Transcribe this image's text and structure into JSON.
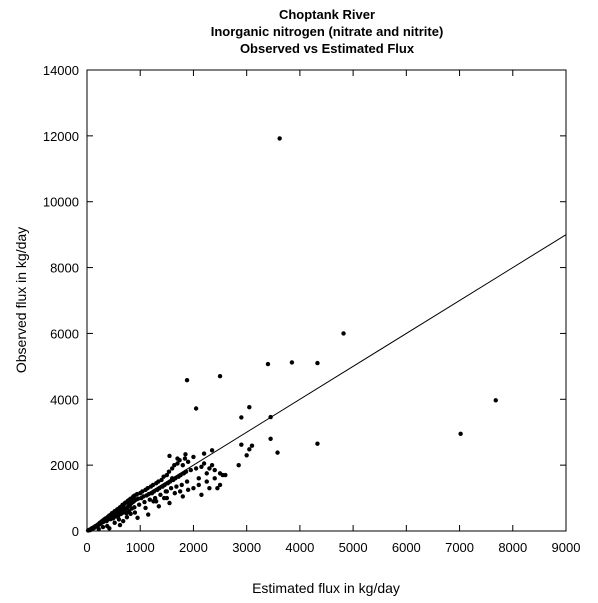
{
  "chart_data": {
    "type": "scatter",
    "title": [
      "Choptank River",
      "Inorganic nitrogen (nitrate and nitrite)",
      "Observed vs Estimated Flux"
    ],
    "xlabel": "Estimated flux in kg/day",
    "ylabel": "Observed flux in kg/day",
    "xlim": [
      0,
      9000
    ],
    "ylim": [
      0,
      14000
    ],
    "xticks": [
      "0",
      "1000",
      "2000",
      "3000",
      "4000",
      "5000",
      "6000",
      "7000",
      "8000",
      "9000"
    ],
    "yticks": [
      "0",
      "2000",
      "4000",
      "6000",
      "8000",
      "10000",
      "12000",
      "14000"
    ],
    "grid": false,
    "reference_line": {
      "x": [
        0,
        9000
      ],
      "y": [
        0,
        9000
      ]
    },
    "points": [
      [
        20,
        15
      ],
      [
        35,
        25
      ],
      [
        50,
        40
      ],
      [
        60,
        30
      ],
      [
        70,
        55
      ],
      [
        80,
        60
      ],
      [
        90,
        80
      ],
      [
        100,
        70
      ],
      [
        110,
        95
      ],
      [
        120,
        105
      ],
      [
        130,
        90
      ],
      [
        140,
        120
      ],
      [
        150,
        140
      ],
      [
        160,
        130
      ],
      [
        170,
        155
      ],
      [
        180,
        165
      ],
      [
        190,
        150
      ],
      [
        200,
        190
      ],
      [
        210,
        175
      ],
      [
        220,
        210
      ],
      [
        230,
        200
      ],
      [
        240,
        250
      ],
      [
        250,
        220
      ],
      [
        260,
        240
      ],
      [
        270,
        280
      ],
      [
        280,
        260
      ],
      [
        290,
        310
      ],
      [
        300,
        270
      ],
      [
        310,
        330
      ],
      [
        320,
        290
      ],
      [
        330,
        360
      ],
      [
        340,
        320
      ],
      [
        350,
        380
      ],
      [
        360,
        340
      ],
      [
        370,
        300
      ],
      [
        380,
        410
      ],
      [
        390,
        360
      ],
      [
        400,
        440
      ],
      [
        410,
        380
      ],
      [
        420,
        470
      ],
      [
        430,
        400
      ],
      [
        440,
        360
      ],
      [
        450,
        500
      ],
      [
        460,
        420
      ],
      [
        470,
        540
      ],
      [
        480,
        450
      ],
      [
        490,
        380
      ],
      [
        500,
        560
      ],
      [
        510,
        480
      ],
      [
        520,
        600
      ],
      [
        530,
        500
      ],
      [
        540,
        440
      ],
      [
        550,
        620
      ],
      [
        560,
        520
      ],
      [
        570,
        660
      ],
      [
        580,
        540
      ],
      [
        590,
        470
      ],
      [
        600,
        680
      ],
      [
        610,
        560
      ],
      [
        620,
        720
      ],
      [
        630,
        600
      ],
      [
        640,
        520
      ],
      [
        650,
        750
      ],
      [
        660,
        640
      ],
      [
        670,
        800
      ],
      [
        680,
        560
      ],
      [
        690,
        700
      ],
      [
        700,
        820
      ],
      [
        710,
        640
      ],
      [
        720,
        860
      ],
      [
        730,
        680
      ],
      [
        740,
        540
      ],
      [
        750,
        880
      ],
      [
        760,
        720
      ],
      [
        770,
        920
      ],
      [
        780,
        760
      ],
      [
        790,
        600
      ],
      [
        800,
        950
      ],
      [
        810,
        800
      ],
      [
        820,
        980
      ],
      [
        830,
        840
      ],
      [
        840,
        680
      ],
      [
        850,
        1000
      ],
      [
        860,
        880
      ],
      [
        870,
        1050
      ],
      [
        880,
        900
      ],
      [
        890,
        720
      ],
      [
        900,
        1080
      ],
      [
        920,
        950
      ],
      [
        940,
        1120
      ],
      [
        960,
        980
      ],
      [
        980,
        800
      ],
      [
        1000,
        1150
      ],
      [
        1020,
        1000
      ],
      [
        1040,
        1200
      ],
      [
        1060,
        1050
      ],
      [
        1080,
        880
      ],
      [
        1100,
        1250
      ],
      [
        1120,
        1080
      ],
      [
        1140,
        1300
      ],
      [
        1160,
        1120
      ],
      [
        1180,
        950
      ],
      [
        1200,
        1350
      ],
      [
        1220,
        1150
      ],
      [
        1240,
        1400
      ],
      [
        1260,
        1200
      ],
      [
        1280,
        1000
      ],
      [
        1300,
        1450
      ],
      [
        1320,
        1250
      ],
      [
        1340,
        1500
      ],
      [
        1360,
        1300
      ],
      [
        1380,
        1100
      ],
      [
        1400,
        1550
      ],
      [
        1420,
        1350
      ],
      [
        1440,
        1650
      ],
      [
        1460,
        1400
      ],
      [
        1480,
        1200
      ],
      [
        1500,
        1700
      ],
      [
        1520,
        1450
      ],
      [
        1540,
        1800
      ],
      [
        1560,
        1500
      ],
      [
        1580,
        1300
      ],
      [
        1600,
        1900
      ],
      [
        1620,
        1550
      ],
      [
        1640,
        2000
      ],
      [
        1660,
        1600
      ],
      [
        1680,
        1350
      ],
      [
        1700,
        2050
      ],
      [
        1720,
        1650
      ],
      [
        1740,
        2150
      ],
      [
        1760,
        1700
      ],
      [
        1780,
        1400
      ],
      [
        1800,
        2000
      ],
      [
        1820,
        1750
      ],
      [
        1840,
        2200
      ],
      [
        1860,
        1800
      ],
      [
        1880,
        1500
      ],
      [
        1900,
        2100
      ],
      [
        1950,
        1850
      ],
      [
        2000,
        2250
      ],
      [
        2050,
        1900
      ],
      [
        2100,
        1600
      ],
      [
        2150,
        1950
      ],
      [
        2200,
        2050
      ],
      [
        2250,
        1750
      ],
      [
        2300,
        1900
      ],
      [
        2350,
        2000
      ],
      [
        2400,
        1850
      ],
      [
        2500,
        1750
      ],
      [
        2600,
        1700
      ],
      [
        220,
        60
      ],
      [
        300,
        120
      ],
      [
        380,
        150
      ],
      [
        420,
        80
      ],
      [
        520,
        250
      ],
      [
        600,
        350
      ],
      [
        620,
        180
      ],
      [
        680,
        300
      ],
      [
        750,
        420
      ],
      [
        820,
        520
      ],
      [
        900,
        560
      ],
      [
        950,
        400
      ],
      [
        1100,
        700
      ],
      [
        1150,
        500
      ],
      [
        1300,
        900
      ],
      [
        1350,
        750
      ],
      [
        1500,
        1000
      ],
      [
        1550,
        850
      ],
      [
        1650,
        1150
      ],
      [
        1750,
        1200
      ],
      [
        1800,
        1050
      ],
      [
        1900,
        1250
      ],
      [
        2000,
        1300
      ],
      [
        2100,
        1400
      ],
      [
        2150,
        1100
      ],
      [
        2250,
        1500
      ],
      [
        2300,
        1300
      ],
      [
        2400,
        1600
      ],
      [
        2500,
        1400
      ],
      [
        1450,
        1000
      ],
      [
        1550,
        2280
      ],
      [
        1700,
        2200
      ],
      [
        1850,
        2330
      ],
      [
        2200,
        2350
      ],
      [
        2350,
        2450
      ],
      [
        2450,
        1300
      ],
      [
        2550,
        1700
      ],
      [
        1600,
        1600
      ],
      [
        1500,
        1200
      ],
      [
        1250,
        900
      ],
      [
        1880,
        4580
      ],
      [
        2050,
        3720
      ],
      [
        2500,
        4700
      ],
      [
        2900,
        3450
      ],
      [
        3050,
        3760
      ],
      [
        2900,
        2620
      ],
      [
        3050,
        2480
      ],
      [
        3100,
        2590
      ],
      [
        2850,
        2000
      ],
      [
        3000,
        2300
      ],
      [
        3400,
        5070
      ],
      [
        3450,
        3460
      ],
      [
        3450,
        2800
      ],
      [
        3580,
        2380
      ],
      [
        3620,
        11920
      ],
      [
        3850,
        5120
      ],
      [
        4330,
        5100
      ],
      [
        4330,
        2650
      ],
      [
        4820,
        6000
      ],
      [
        7020,
        2950
      ],
      [
        7680,
        3970
      ]
    ]
  }
}
